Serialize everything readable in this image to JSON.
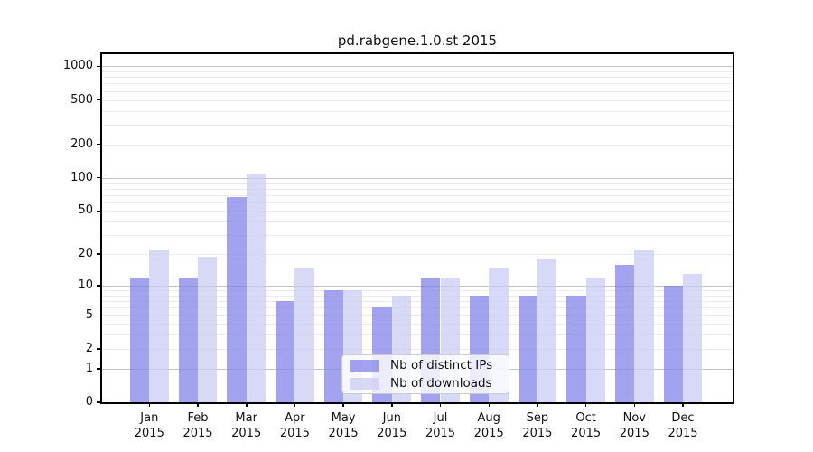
{
  "chart_data": {
    "type": "bar",
    "title": "pd.rabgene.1.0.st 2015",
    "categories_month": [
      "Jan",
      "Feb",
      "Mar",
      "Apr",
      "May",
      "Jun",
      "Jul",
      "Aug",
      "Sep",
      "Oct",
      "Nov",
      "Dec"
    ],
    "year": "2015",
    "series": [
      {
        "name": "Nb of distinct IPs",
        "color": "#8383e9c0",
        "values": [
          12,
          12,
          67,
          7,
          9,
          6,
          12,
          8,
          8,
          8,
          16,
          10
        ]
      },
      {
        "name": "Nb of downloads",
        "color": "#cbcbf5c0",
        "values": [
          22,
          19,
          110,
          15,
          9,
          8,
          12,
          15,
          18,
          12,
          22,
          13
        ]
      }
    ],
    "y_ticks": [
      0,
      1,
      2,
      5,
      10,
      20,
      50,
      100,
      200,
      500,
      1000
    ],
    "y_scale": "log1p (log10 of value+1)",
    "ylim": [
      0,
      1278
    ],
    "xlabel": "",
    "ylabel": "",
    "grid": "horizontal major and minor log gridlines",
    "legend_position": "inside plot, lower center",
    "colors": {
      "grid_major": "#c3c3c3",
      "grid_minor": "#ececec",
      "frame": "#000000",
      "text": "#111111",
      "legend_border": "#cccccc"
    }
  }
}
